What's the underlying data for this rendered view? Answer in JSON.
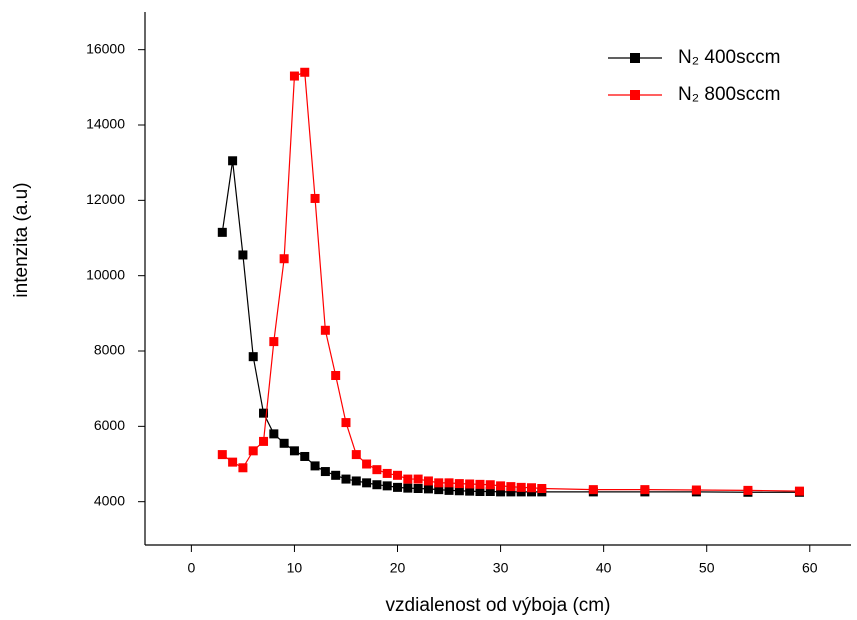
{
  "chart_data": {
    "type": "line",
    "x_label": "vzdialenost od výboja (cm)",
    "y_label": "intenzita (a.u)",
    "x": [
      3,
      4,
      5,
      6,
      7,
      8,
      9,
      10,
      11,
      12,
      13,
      14,
      15,
      16,
      17,
      18,
      19,
      20,
      21,
      22,
      23,
      24,
      25,
      26,
      27,
      28,
      29,
      30,
      31,
      32,
      33,
      34,
      39,
      44,
      49,
      54,
      59
    ],
    "series": [
      {
        "name": "N₂ 400sccm",
        "color": "#000000",
        "values": [
          11150,
          13050,
          10550,
          7850,
          6350,
          5800,
          5550,
          5350,
          5200,
          4950,
          4800,
          4700,
          4600,
          4550,
          4500,
          4450,
          4420,
          4380,
          4360,
          4350,
          4340,
          4320,
          4300,
          4290,
          4280,
          4270,
          4270,
          4260,
          4260,
          4260,
          4260,
          4260,
          4260,
          4260,
          4260,
          4250,
          4250
        ]
      },
      {
        "name": "N₂ 800sccm",
        "color": "#ff0000",
        "values": [
          5250,
          5050,
          4900,
          5350,
          5600,
          8250,
          10450,
          15300,
          15400,
          12050,
          8550,
          7350,
          6100,
          5250,
          5000,
          4850,
          4750,
          4700,
          4600,
          4600,
          4550,
          4500,
          4500,
          4480,
          4470,
          4460,
          4450,
          4420,
          4400,
          4380,
          4370,
          4350,
          4320,
          4320,
          4310,
          4300,
          4280
        ]
      }
    ],
    "xlim": [
      -4.5,
      64
    ],
    "xticks": [
      0,
      10,
      20,
      30,
      40,
      50,
      60
    ],
    "ylim": [
      2850,
      17000
    ],
    "yticks": [
      4000,
      6000,
      8000,
      10000,
      12000,
      14000,
      16000
    ],
    "legend": "upper right",
    "grid": false
  }
}
